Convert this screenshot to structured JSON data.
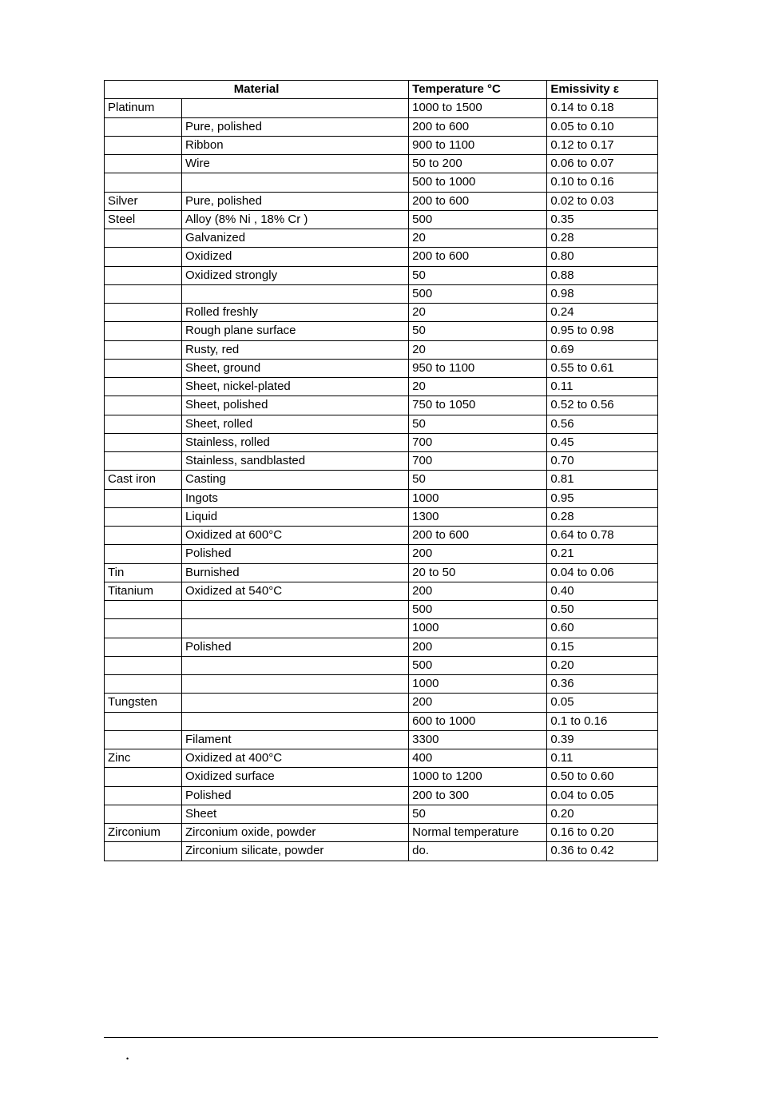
{
  "table": {
    "headers": {
      "material": "Material",
      "temperature": "Temperature °C",
      "emissivity": "Emissivity ε"
    },
    "rows": [
      {
        "mat": "Platinum",
        "desc": "",
        "temp": "1000 to 1500",
        "emis": "0.14 to 0.18"
      },
      {
        "mat": "",
        "desc": "Pure, polished",
        "temp": "200 to 600",
        "emis": "0.05 to 0.10"
      },
      {
        "mat": "",
        "desc": "Ribbon",
        "temp": "900 to 1100",
        "emis": "0.12 to 0.17"
      },
      {
        "mat": "",
        "desc": "Wire",
        "temp": "50 to 200",
        "emis": "0.06 to 0.07"
      },
      {
        "mat": "",
        "desc": "",
        "temp": "500 to 1000",
        "emis": "0.10 to 0.16"
      },
      {
        "mat": "Silver",
        "desc": "Pure, polished",
        "temp": "200 to 600",
        "emis": "0.02 to 0.03"
      },
      {
        "mat": "Steel",
        "desc": "Alloy (8% Ni , 18% Cr )",
        "temp": "500",
        "emis": "0.35"
      },
      {
        "mat": "",
        "desc": "Galvanized",
        "temp": "20",
        "emis": "0.28"
      },
      {
        "mat": "",
        "desc": "Oxidized",
        "temp": "200 to 600",
        "emis": "0.80"
      },
      {
        "mat": "",
        "desc": "Oxidized strongly",
        "temp": "50",
        "emis": "0.88"
      },
      {
        "mat": "",
        "desc": "",
        "temp": "500",
        "emis": "0.98"
      },
      {
        "mat": "",
        "desc": "Rolled freshly",
        "temp": "20",
        "emis": "0.24"
      },
      {
        "mat": "",
        "desc": "Rough plane surface",
        "temp": "50",
        "emis": "0.95 to 0.98"
      },
      {
        "mat": "",
        "desc": "Rusty, red",
        "temp": "20",
        "emis": "0.69"
      },
      {
        "mat": "",
        "desc": "Sheet, ground",
        "temp": "950 to 1100",
        "emis": "0.55 to 0.61"
      },
      {
        "mat": "",
        "desc": "Sheet, nickel-plated",
        "temp": "20",
        "emis": "0.11"
      },
      {
        "mat": "",
        "desc": "Sheet, polished",
        "temp": "750 to 1050",
        "emis": "0.52 to 0.56"
      },
      {
        "mat": "",
        "desc": "Sheet, rolled",
        "temp": "50",
        "emis": "0.56"
      },
      {
        "mat": "",
        "desc": "Stainless, rolled",
        "temp": "700",
        "emis": "0.45"
      },
      {
        "mat": "",
        "desc": "Stainless, sandblasted",
        "temp": "700",
        "emis": "0.70"
      },
      {
        "mat": "Cast iron",
        "desc": "Casting",
        "temp": "50",
        "emis": "0.81"
      },
      {
        "mat": "",
        "desc": "Ingots",
        "temp": "1000",
        "emis": "0.95"
      },
      {
        "mat": "",
        "desc": "Liquid",
        "temp": "1300",
        "emis": "0.28"
      },
      {
        "mat": "",
        "desc": "Oxidized at 600°C",
        "temp": "200 to 600",
        "emis": "0.64 to 0.78"
      },
      {
        "mat": "",
        "desc": "Polished",
        "temp": "200",
        "emis": "0.21"
      },
      {
        "mat": "Tin",
        "desc": "Burnished",
        "temp": "20 to 50",
        "emis": "0.04 to 0.06"
      },
      {
        "mat": "Titanium",
        "desc": "Oxidized at 540°C",
        "temp": "200",
        "emis": "0.40"
      },
      {
        "mat": "",
        "desc": "",
        "temp": "500",
        "emis": "0.50"
      },
      {
        "mat": "",
        "desc": "",
        "temp": "1000",
        "emis": "0.60"
      },
      {
        "mat": "",
        "desc": "Polished",
        "temp": "200",
        "emis": "0.15"
      },
      {
        "mat": "",
        "desc": "",
        "temp": "500",
        "emis": "0.20"
      },
      {
        "mat": "",
        "desc": "",
        "temp": "1000",
        "emis": "0.36"
      },
      {
        "mat": "Tungsten",
        "desc": "",
        "temp": "200",
        "emis": "0.05"
      },
      {
        "mat": "",
        "desc": "",
        "temp": "600 to 1000",
        "emis": "0.1 to 0.16"
      },
      {
        "mat": "",
        "desc": "Filament",
        "temp": "3300",
        "emis": "0.39"
      },
      {
        "mat": "Zinc",
        "desc": "Oxidized at 400°C",
        "temp": "400",
        "emis": "0.11"
      },
      {
        "mat": "",
        "desc": "Oxidized surface",
        "temp": "1000 to 1200",
        "emis": "0.50 to 0.60"
      },
      {
        "mat": "",
        "desc": "Polished",
        "temp": "200 to 300",
        "emis": "0.04 to 0.05"
      },
      {
        "mat": "",
        "desc": "Sheet",
        "temp": "50",
        "emis": "0.20"
      },
      {
        "mat": "Zirconium",
        "desc": "Zirconium oxide, powder",
        "temp": "Normal temperature",
        "emis": "0.16 to 0.20"
      },
      {
        "mat": "",
        "desc": "Zirconium silicate, powder",
        "temp": "do.",
        "emis": "0.36 to 0.42"
      }
    ]
  },
  "footer": {
    "bullet": "•"
  }
}
